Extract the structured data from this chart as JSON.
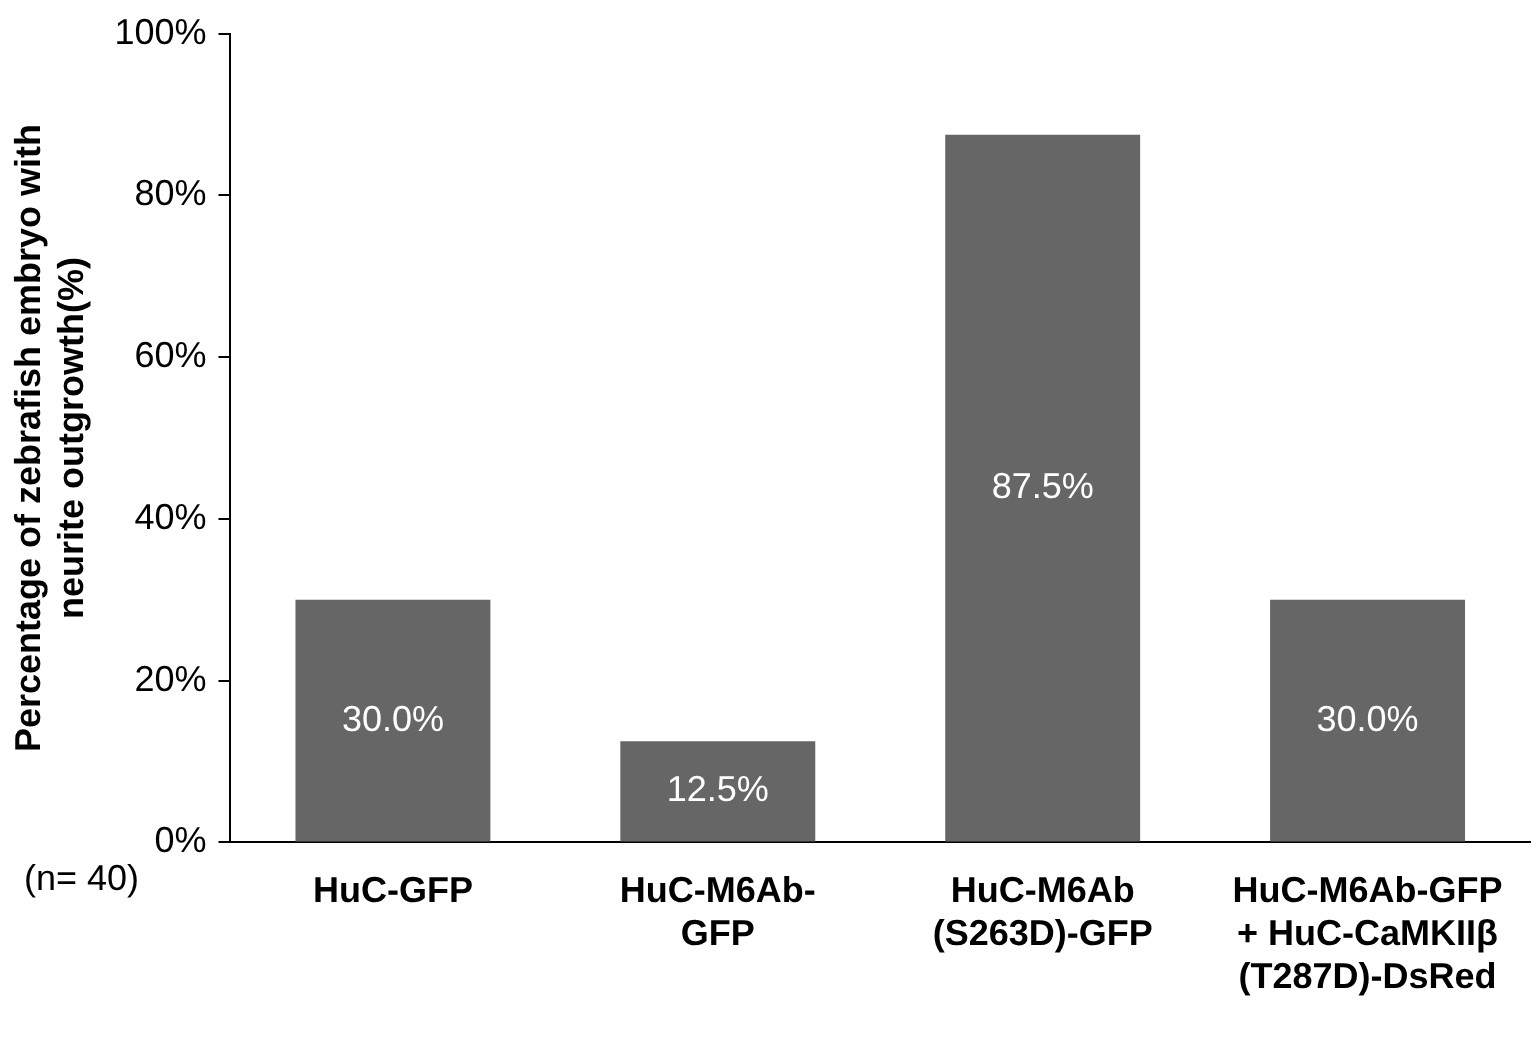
{
  "chart_data": {
    "type": "bar",
    "ylabel": "Percentage of zebrafish embryo with\nneurite outgrowth(%)",
    "categories": [
      "HuC-GFP",
      "HuC-M6Ab-\nGFP",
      "HuC-M6Ab\n(S263D)-GFP",
      "HuC-M6Ab-GFP\n+ HuC-CaMKIIβ\n(T287D)-DsRed"
    ],
    "values": [
      30,
      12.5,
      87.5,
      30
    ],
    "value_labels": [
      "30.0%",
      "12.5%",
      "87.5%",
      "30.0%"
    ],
    "color": "#666666",
    "ylim": [
      0,
      100
    ],
    "yticks": [
      {
        "value": 0,
        "label": "0%"
      },
      {
        "value": 20,
        "label": "20%"
      },
      {
        "value": 40,
        "label": "40%"
      },
      {
        "value": 60,
        "label": "60%"
      },
      {
        "value": 80,
        "label": "80%"
      },
      {
        "value": 100,
        "label": "100%"
      }
    ],
    "annotations": [
      "(n= 40)"
    ],
    "grid": false,
    "legend": false
  }
}
